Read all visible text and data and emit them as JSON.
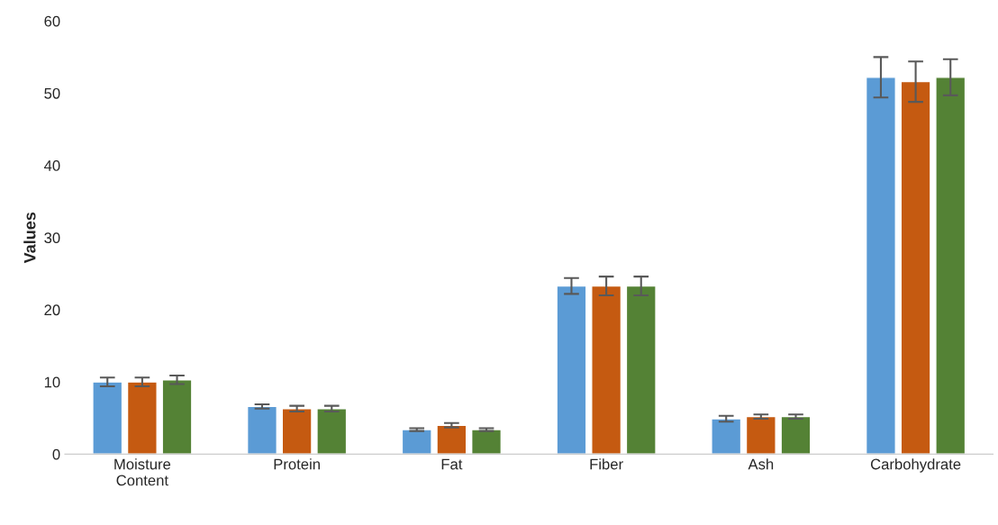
{
  "chart_data": {
    "type": "bar",
    "ylabel": "Values",
    "categories": [
      "Moisture\nContent",
      "Protein",
      "Fat",
      "Fiber",
      "Ash",
      "Carbohydrate"
    ],
    "series": [
      {
        "color": "#5b9bd5",
        "values": [
          10.0,
          6.6,
          3.4,
          23.3,
          4.9,
          52.2
        ],
        "errors": [
          0.6,
          0.3,
          0.2,
          1.1,
          0.4,
          2.8
        ]
      },
      {
        "color": "#c55a11",
        "values": [
          10.0,
          6.3,
          4.0,
          23.3,
          5.2,
          51.6
        ],
        "errors": [
          0.6,
          0.4,
          0.3,
          1.3,
          0.3,
          2.8
        ]
      },
      {
        "color": "#548235",
        "values": [
          10.3,
          6.3,
          3.4,
          23.3,
          5.2,
          52.2
        ],
        "errors": [
          0.6,
          0.4,
          0.2,
          1.3,
          0.3,
          2.5
        ]
      }
    ],
    "ylim": [
      0,
      60
    ],
    "yticks": [
      0,
      10,
      20,
      30,
      40,
      50,
      60
    ],
    "grid": false,
    "legend": false
  }
}
